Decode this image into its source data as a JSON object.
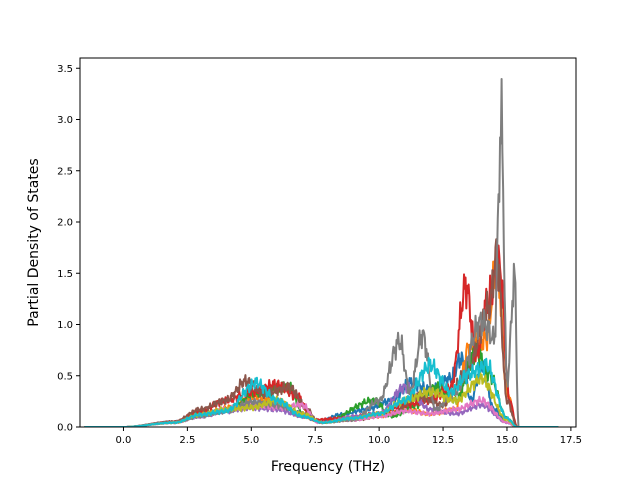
{
  "chart_data": {
    "type": "line",
    "title": "",
    "xlabel": "Frequency (THz)",
    "ylabel": "Partial Density of States",
    "xlim": [
      -1.7,
      17.7
    ],
    "ylim": [
      0,
      3.6
    ],
    "xticks": [
      0.0,
      2.5,
      5.0,
      7.5,
      10.0,
      12.5,
      15.0,
      17.5
    ],
    "xtick_labels": [
      "0.0",
      "2.5",
      "5.0",
      "7.5",
      "10.0",
      "12.5",
      "15.0",
      "17.5"
    ],
    "yticks": [
      0.0,
      0.5,
      1.0,
      1.5,
      2.0,
      2.5,
      3.0,
      3.5
    ],
    "ytick_labels": [
      "0.0",
      "0.5",
      "1.0",
      "1.5",
      "2.0",
      "2.5",
      "3.0",
      "3.5"
    ],
    "grid": false,
    "legend": "none",
    "series": [
      {
        "color": "#1f77b4",
        "peaks": [
          [
            0.0,
            0.0
          ],
          [
            2.0,
            0.06
          ],
          [
            3.0,
            0.14
          ],
          [
            4.0,
            0.2
          ],
          [
            5.0,
            0.28
          ],
          [
            6.0,
            0.25
          ],
          [
            7.0,
            0.15
          ],
          [
            7.6,
            0.06
          ],
          [
            8.5,
            0.14
          ],
          [
            9.5,
            0.2
          ],
          [
            10.5,
            0.3
          ],
          [
            11.2,
            0.5
          ],
          [
            12.0,
            0.42
          ],
          [
            12.8,
            0.55
          ],
          [
            13.2,
            0.78
          ],
          [
            13.6,
            0.3
          ],
          [
            14.0,
            0.7
          ],
          [
            14.5,
            0.2
          ],
          [
            15.0,
            0.05
          ],
          [
            15.4,
            0.0
          ]
        ]
      },
      {
        "color": "#ff7f0e",
        "peaks": [
          [
            0.0,
            0.0
          ],
          [
            2.0,
            0.05
          ],
          [
            3.2,
            0.16
          ],
          [
            4.2,
            0.22
          ],
          [
            5.0,
            0.35
          ],
          [
            6.0,
            0.3
          ],
          [
            7.0,
            0.12
          ],
          [
            7.8,
            0.05
          ],
          [
            9.0,
            0.1
          ],
          [
            10.0,
            0.12
          ],
          [
            11.0,
            0.2
          ],
          [
            12.0,
            0.15
          ],
          [
            13.0,
            0.2
          ],
          [
            13.5,
            0.9
          ],
          [
            14.2,
            1.0
          ],
          [
            14.6,
            1.9
          ],
          [
            15.0,
            0.4
          ],
          [
            15.4,
            0.0
          ]
        ]
      },
      {
        "color": "#2ca02c",
        "peaks": [
          [
            0.0,
            0.0
          ],
          [
            2.0,
            0.05
          ],
          [
            3.0,
            0.15
          ],
          [
            4.2,
            0.2
          ],
          [
            5.2,
            0.4
          ],
          [
            6.5,
            0.45
          ],
          [
            7.0,
            0.15
          ],
          [
            7.8,
            0.05
          ],
          [
            9.8,
            0.3
          ],
          [
            10.5,
            0.12
          ],
          [
            11.5,
            0.25
          ],
          [
            12.2,
            0.45
          ],
          [
            13.0,
            0.3
          ],
          [
            13.8,
            0.85
          ],
          [
            14.3,
            0.6
          ],
          [
            15.0,
            0.1
          ],
          [
            15.4,
            0.0
          ]
        ]
      },
      {
        "color": "#d62728",
        "peaks": [
          [
            0.0,
            0.0
          ],
          [
            2.0,
            0.06
          ],
          [
            3.0,
            0.18
          ],
          [
            4.0,
            0.3
          ],
          [
            5.0,
            0.4
          ],
          [
            6.0,
            0.48
          ],
          [
            6.8,
            0.35
          ],
          [
            7.4,
            0.08
          ],
          [
            8.5,
            0.1
          ],
          [
            10.0,
            0.15
          ],
          [
            11.0,
            0.25
          ],
          [
            12.0,
            0.3
          ],
          [
            12.8,
            0.45
          ],
          [
            13.4,
            1.6
          ],
          [
            13.8,
            0.8
          ],
          [
            14.2,
            1.4
          ],
          [
            14.7,
            1.85
          ],
          [
            15.1,
            0.3
          ],
          [
            15.4,
            0.0
          ]
        ]
      },
      {
        "color": "#9467bd",
        "peaks": [
          [
            0.0,
            0.0
          ],
          [
            2.0,
            0.05
          ],
          [
            3.0,
            0.12
          ],
          [
            4.0,
            0.18
          ],
          [
            5.0,
            0.22
          ],
          [
            6.0,
            0.2
          ],
          [
            7.0,
            0.12
          ],
          [
            7.8,
            0.05
          ],
          [
            9.0,
            0.12
          ],
          [
            10.0,
            0.15
          ],
          [
            11.0,
            0.45
          ],
          [
            12.0,
            0.2
          ],
          [
            13.0,
            0.15
          ],
          [
            14.0,
            0.25
          ],
          [
            15.0,
            0.05
          ],
          [
            15.4,
            0.0
          ]
        ]
      },
      {
        "color": "#8c564b",
        "peaks": [
          [
            0.0,
            0.0
          ],
          [
            2.0,
            0.06
          ],
          [
            3.0,
            0.2
          ],
          [
            4.0,
            0.3
          ],
          [
            4.8,
            0.52
          ],
          [
            5.5,
            0.38
          ],
          [
            6.5,
            0.45
          ],
          [
            7.2,
            0.2
          ],
          [
            7.6,
            0.05
          ],
          [
            9.0,
            0.08
          ],
          [
            10.5,
            0.15
          ],
          [
            11.5,
            0.35
          ],
          [
            12.5,
            0.25
          ],
          [
            13.4,
            0.6
          ],
          [
            14.3,
            1.35
          ],
          [
            14.6,
            1.95
          ],
          [
            15.0,
            0.3
          ],
          [
            15.4,
            0.0
          ]
        ]
      },
      {
        "color": "#e377c2",
        "peaks": [
          [
            0.0,
            0.0
          ],
          [
            2.0,
            0.05
          ],
          [
            3.0,
            0.12
          ],
          [
            4.0,
            0.2
          ],
          [
            5.0,
            0.25
          ],
          [
            6.2,
            0.22
          ],
          [
            7.0,
            0.25
          ],
          [
            7.6,
            0.05
          ],
          [
            9.0,
            0.08
          ],
          [
            10.0,
            0.12
          ],
          [
            11.0,
            0.18
          ],
          [
            12.0,
            0.15
          ],
          [
            13.0,
            0.2
          ],
          [
            14.0,
            0.3
          ],
          [
            15.0,
            0.05
          ],
          [
            15.4,
            0.0
          ]
        ]
      },
      {
        "color": "#7f7f7f",
        "peaks": [
          [
            0.0,
            0.0
          ],
          [
            2.0,
            0.05
          ],
          [
            3.0,
            0.12
          ],
          [
            4.0,
            0.18
          ],
          [
            5.0,
            0.28
          ],
          [
            6.0,
            0.25
          ],
          [
            7.0,
            0.15
          ],
          [
            7.8,
            0.05
          ],
          [
            9.0,
            0.08
          ],
          [
            10.0,
            0.3
          ],
          [
            10.8,
            0.97
          ],
          [
            11.2,
            0.4
          ],
          [
            11.7,
            1.05
          ],
          [
            12.2,
            0.2
          ],
          [
            13.0,
            0.4
          ],
          [
            14.0,
            1.2
          ],
          [
            14.5,
            1.0
          ],
          [
            14.78,
            3.43
          ],
          [
            15.0,
            0.5
          ],
          [
            15.3,
            1.7
          ],
          [
            15.45,
            0.0
          ]
        ]
      },
      {
        "color": "#bcbd22",
        "peaks": [
          [
            0.0,
            0.0
          ],
          [
            2.0,
            0.05
          ],
          [
            3.0,
            0.14
          ],
          [
            4.0,
            0.2
          ],
          [
            5.0,
            0.22
          ],
          [
            6.0,
            0.3
          ],
          [
            7.0,
            0.15
          ],
          [
            7.8,
            0.05
          ],
          [
            9.0,
            0.1
          ],
          [
            10.0,
            0.15
          ],
          [
            11.0,
            0.3
          ],
          [
            12.0,
            0.4
          ],
          [
            13.0,
            0.3
          ],
          [
            14.0,
            0.55
          ],
          [
            15.0,
            0.08
          ],
          [
            15.4,
            0.0
          ]
        ]
      },
      {
        "color": "#17becf",
        "peaks": [
          [
            0.0,
            0.0
          ],
          [
            2.0,
            0.05
          ],
          [
            3.0,
            0.14
          ],
          [
            4.0,
            0.18
          ],
          [
            5.2,
            0.5
          ],
          [
            6.0,
            0.3
          ],
          [
            7.0,
            0.12
          ],
          [
            7.8,
            0.05
          ],
          [
            9.0,
            0.1
          ],
          [
            10.0,
            0.15
          ],
          [
            11.0,
            0.3
          ],
          [
            12.0,
            0.7
          ],
          [
            12.8,
            0.4
          ],
          [
            13.5,
            0.6
          ],
          [
            14.2,
            0.7
          ],
          [
            15.0,
            0.1
          ],
          [
            15.4,
            0.0
          ]
        ]
      }
    ]
  }
}
